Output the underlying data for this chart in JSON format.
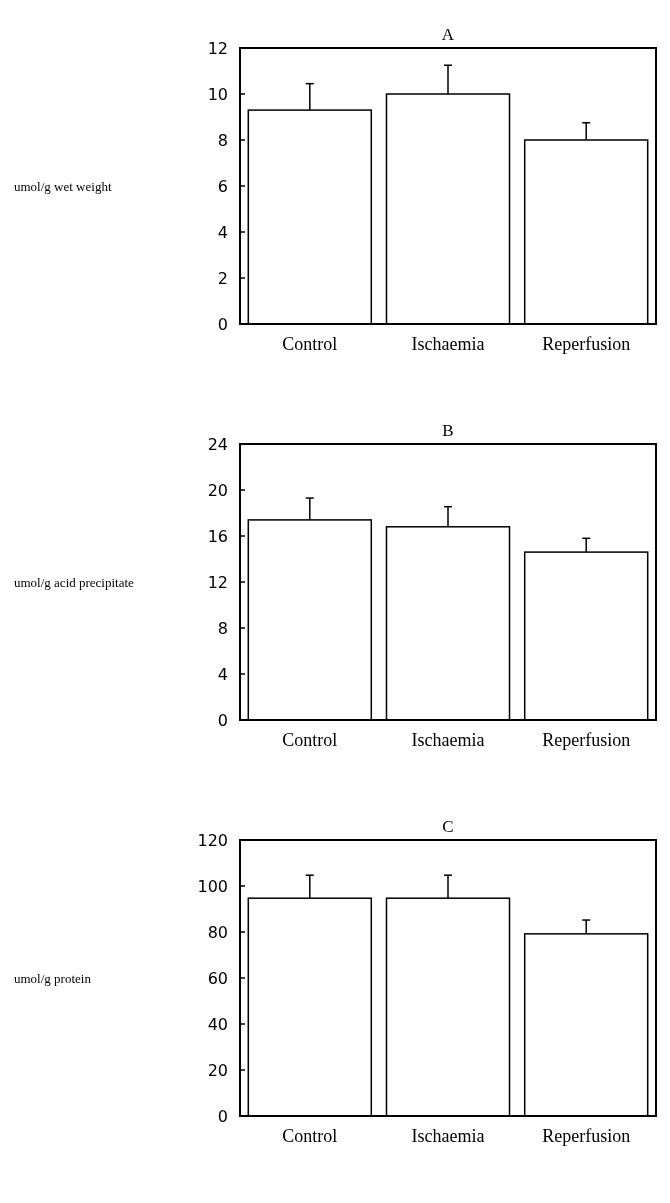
{
  "chart_data": [
    {
      "type": "bar",
      "title": "A",
      "ylabel": "umol/g wet weight",
      "categories": [
        "Control",
        "Ischaemia",
        "Reperfusion"
      ],
      "values": [
        9.3,
        10.0,
        8.0
      ],
      "errors": [
        1.15,
        1.25,
        0.75
      ],
      "color": "#ffffff",
      "ylim": [
        0,
        12
      ],
      "yticks": [
        0,
        2,
        4,
        6,
        8,
        10,
        12
      ]
    },
    {
      "type": "bar",
      "title": "B",
      "ylabel": "umol/g acid precipitate",
      "categories": [
        "Control",
        "Ischaemia",
        "Reperfusion"
      ],
      "values": [
        17.4,
        16.8,
        14.6
      ],
      "errors": [
        1.9,
        1.75,
        1.2
      ],
      "color": "#ffffff",
      "ylim": [
        0,
        24
      ],
      "yticks": [
        0,
        4,
        8,
        12,
        16,
        20,
        24
      ]
    },
    {
      "type": "bar",
      "title": "C",
      "ylabel": "umol/g protein",
      "categories": [
        "Control",
        "Ischaemia",
        "Reperfusion"
      ],
      "values": [
        94.7,
        94.7,
        79.2
      ],
      "errors": [
        10,
        10,
        6
      ],
      "color": "#ffffff",
      "ylim": [
        0,
        120
      ],
      "yticks": [
        0,
        20,
        40,
        60,
        80,
        100,
        120
      ]
    }
  ]
}
